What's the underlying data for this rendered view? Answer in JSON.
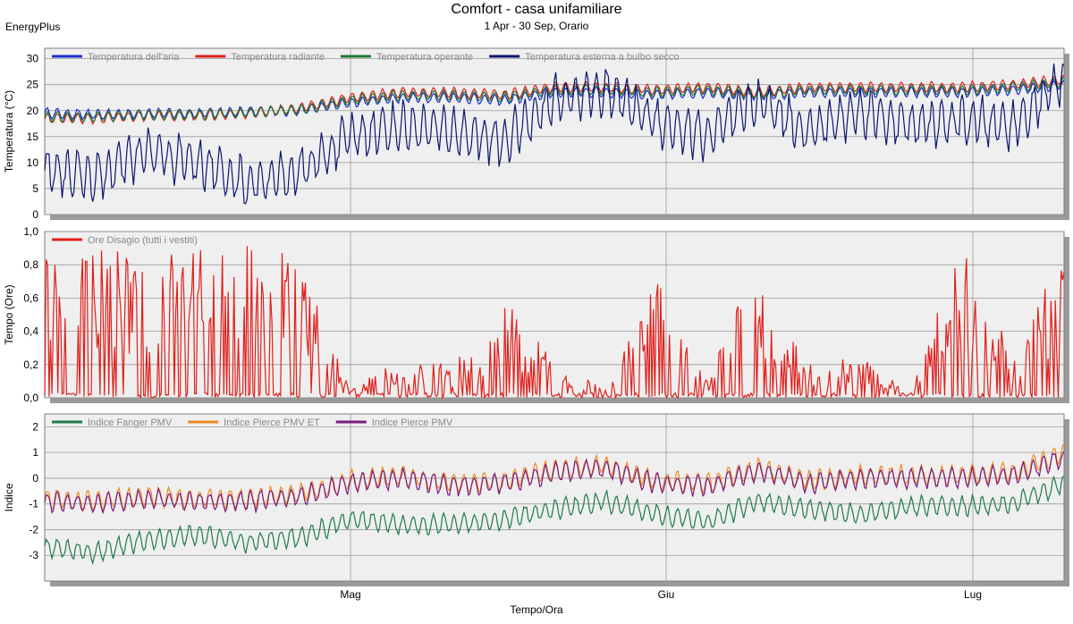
{
  "header": {
    "title": "Comfort - casa unifamiliare",
    "subtitle": "1 Apr - 30 Sep, Orario",
    "app": "EnergyPlus"
  },
  "x_axis": {
    "label": "Tempo/Ora",
    "ticks": [
      "Mag",
      "Giu",
      "Lug"
    ]
  },
  "chart_data": [
    {
      "type": "line",
      "ylabel": "Temperatura (°C)",
      "ylim": [
        0,
        32
      ],
      "yticks": [
        0,
        5,
        10,
        15,
        20,
        25,
        30
      ],
      "ytick_labels": [
        "0",
        "5",
        "10",
        "15",
        "20",
        "25",
        "30"
      ],
      "grid": true,
      "legend_position": "top-left",
      "x_domain_days": [
        0,
        100
      ],
      "x": [
        0,
        5,
        10,
        15,
        20,
        25,
        30,
        35,
        40,
        45,
        50,
        55,
        60,
        65,
        70,
        75,
        80,
        85,
        90,
        95,
        100
      ],
      "series": [
        {
          "name": "Temperatura dell'aria",
          "color": "#1a2fd1",
          "values": [
            19.5,
            19.2,
            19.5,
            19.5,
            19.8,
            20,
            21.5,
            22.5,
            22.5,
            22,
            23.5,
            23.5,
            23,
            23.5,
            23,
            23.5,
            23.5,
            23.5,
            23.5,
            24,
            25
          ]
        },
        {
          "name": "Temperatura radiante",
          "color": "#e0201c",
          "values": [
            18.5,
            18.5,
            19,
            19,
            19.5,
            20.5,
            22.5,
            23.5,
            23.5,
            23,
            24.5,
            24.5,
            24,
            24.5,
            23.5,
            24.5,
            24.5,
            24.5,
            24.5,
            25,
            26
          ]
        },
        {
          "name": "Temperatura operante",
          "color": "#1e7a2c",
          "values": [
            18.8,
            18.8,
            19.2,
            19.2,
            19.6,
            20.2,
            22,
            23,
            23,
            22.5,
            24,
            24,
            23.5,
            24,
            23.2,
            24,
            24,
            24,
            24,
            24.5,
            25.5
          ]
        },
        {
          "name": "Temperatura esterna a bulbo secco",
          "color": "#0a1670",
          "values": [
            9,
            7,
            12,
            10,
            6,
            8,
            15,
            17,
            16,
            14,
            22,
            24,
            18,
            15,
            22,
            16,
            20,
            17,
            18,
            17,
            26
          ]
        }
      ]
    },
    {
      "type": "line",
      "ylabel": "Tempo (Ore)",
      "ylim": [
        0,
        1
      ],
      "yticks": [
        0,
        0.2,
        0.4,
        0.6,
        0.8,
        1
      ],
      "ytick_labels": [
        "0,0",
        "0,2",
        "0,4",
        "0,6",
        "0,8",
        "1,0"
      ],
      "grid": true,
      "legend_position": "top-left",
      "x_domain_days": [
        0,
        100
      ],
      "x": [
        0,
        5,
        10,
        15,
        20,
        25,
        30,
        35,
        40,
        45,
        50,
        55,
        60,
        65,
        70,
        75,
        80,
        85,
        90,
        95,
        100
      ],
      "series": [
        {
          "name": "Ore Disagio (tutti i vestiti)",
          "color": "#e0201c",
          "values": [
            0.85,
            0.95,
            0.85,
            0.9,
            0.95,
            0.85,
            0.05,
            0.25,
            0.2,
            0.6,
            0.25,
            0.05,
            0.75,
            0.1,
            0.85,
            0.2,
            0.25,
            0.05,
            0.95,
            0.25,
            0.95
          ]
        }
      ]
    },
    {
      "type": "line",
      "ylabel": "Indice",
      "ylim": [
        -4,
        2.5
      ],
      "yticks": [
        -3,
        -2,
        -1,
        0,
        1,
        2
      ],
      "ytick_labels": [
        "-3",
        "-2",
        "-1",
        "0",
        "1",
        "2"
      ],
      "grid": true,
      "legend_position": "top-left",
      "x_domain_days": [
        0,
        100
      ],
      "x": [
        0,
        5,
        10,
        15,
        20,
        25,
        30,
        35,
        40,
        45,
        50,
        55,
        60,
        65,
        70,
        75,
        80,
        85,
        90,
        95,
        100
      ],
      "series": [
        {
          "name": "Indice Fanger PMV",
          "color": "#1e7a4a",
          "values": [
            -2.7,
            -2.9,
            -2.4,
            -2.2,
            -2.5,
            -2.3,
            -1.6,
            -1.8,
            -1.8,
            -1.6,
            -1.2,
            -0.9,
            -1.4,
            -1.7,
            -0.9,
            -1.2,
            -1.4,
            -1.1,
            -1.1,
            -1.0,
            -0.2
          ]
        },
        {
          "name": "Indice Pierce PMV ET",
          "color": "#ef8a22",
          "values": [
            -0.8,
            -0.9,
            -0.7,
            -0.8,
            -0.8,
            -0.6,
            -0.1,
            0.1,
            -0.2,
            -0.1,
            0.3,
            0.5,
            -0.1,
            -0.2,
            0.4,
            -0.1,
            0.1,
            0.1,
            0.1,
            0.2,
            1.0
          ]
        },
        {
          "name": "Indice Pierce PMV",
          "color": "#7a1a80",
          "values": [
            -0.9,
            -1.0,
            -0.8,
            -0.9,
            -0.9,
            -0.7,
            -0.2,
            0.0,
            -0.3,
            -0.2,
            0.2,
            0.4,
            -0.2,
            -0.3,
            0.3,
            -0.2,
            0.0,
            0.0,
            0.0,
            0.1,
            0.8
          ]
        }
      ]
    }
  ]
}
